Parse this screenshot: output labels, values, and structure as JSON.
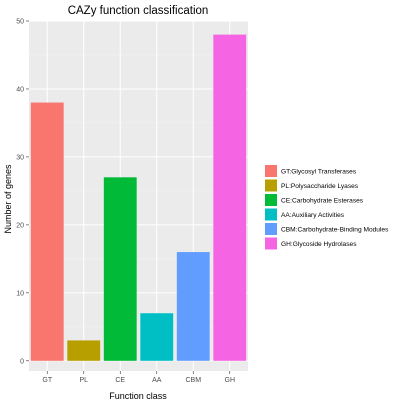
{
  "chart_data": {
    "type": "bar",
    "title": "CAZy function classification",
    "xlabel": "Function class",
    "ylabel": "Number of genes",
    "categories": [
      "GT",
      "PL",
      "CE",
      "AA",
      "CBM",
      "GH"
    ],
    "values": [
      38,
      3,
      27,
      7,
      16,
      48
    ],
    "colors": [
      "#F8766D",
      "#B79F00",
      "#00BA38",
      "#00BFC4",
      "#619CFF",
      "#F564E3"
    ],
    "ylim": [
      -1.5,
      50
    ],
    "yticks": [
      0,
      10,
      20,
      30,
      40,
      50
    ],
    "grid": true,
    "panel_background": "#EBEBEB",
    "legend": {
      "position": "right",
      "entries": [
        "GT:Glycosyl Transferases",
        "PL:Polysaccharide Lyases",
        "CE:Carbohydrate Esterases",
        "AA:Auxiliary Activities",
        "CBM:Carbohydrate-Binding Modules",
        "GH:Glycoside Hydrolases"
      ]
    }
  }
}
